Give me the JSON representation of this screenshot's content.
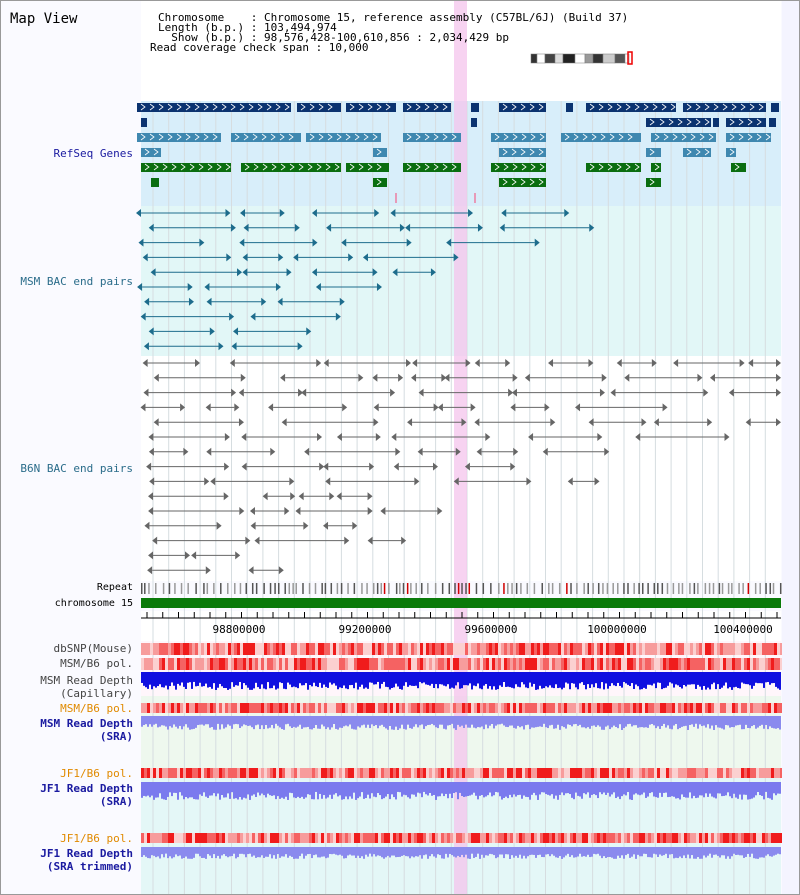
{
  "title": "Map View",
  "header": {
    "chromosome": "Chromosome    : Chromosome 15, reference assembly (C57BL/6J) (Build 37)",
    "length": "Length (b.p.) : 103,494,974",
    "show": "  Show (b.p.) : 98,576,428-100,610,856 : 2,034,429 bp",
    "span": "Read coverage check span : 10,000"
  },
  "tracks": {
    "refseq": "RefSeq Genes",
    "msm_bac": "MSM BAC end pairs",
    "b6n_bac": "B6N BAC end pairs",
    "repeat": "Repeat",
    "chromosome": "chromosome 15",
    "dbsnp": "dbSNP(Mouse)",
    "msm_b6_pol_1": "MSM/B6 pol.",
    "msm_depth_cap_1": "MSM Read Depth",
    "msm_depth_cap_2": "(Capillary)",
    "msm_b6_pol_2": "MSM/B6 pol.",
    "msm_depth_sra_1": "MSM Read Depth",
    "msm_depth_sra_2": "(SRA)",
    "jf1_b6_pol_1": "JF1/B6 pol.",
    "jf1_depth_sra_1": "JF1 Read Depth",
    "jf1_depth_sra_2": "(SRA)",
    "jf1_b6_pol_2": "JF1/B6 pol.",
    "jf1_depth_trim_1": "JF1 Read Depth",
    "jf1_depth_trim_2": "(SRA trimmed)"
  },
  "axis": {
    "ticks": [
      "98800000",
      "99200000",
      "99600000",
      "100000000",
      "100400000"
    ]
  },
  "colors": {
    "refseq_dark": "#0b3370",
    "refseq_mid": "#3f88b0",
    "refseq_green": "#0a6e10",
    "msm_pair": "#1d6c8c",
    "b6n_pair": "#666666",
    "chromosome": "#0a7a0a",
    "highlight": "#f4c4ec",
    "label_blue": "#1a1aa0",
    "label_orange": "#e08a00",
    "label_teal": "#2a6c8a"
  }
}
